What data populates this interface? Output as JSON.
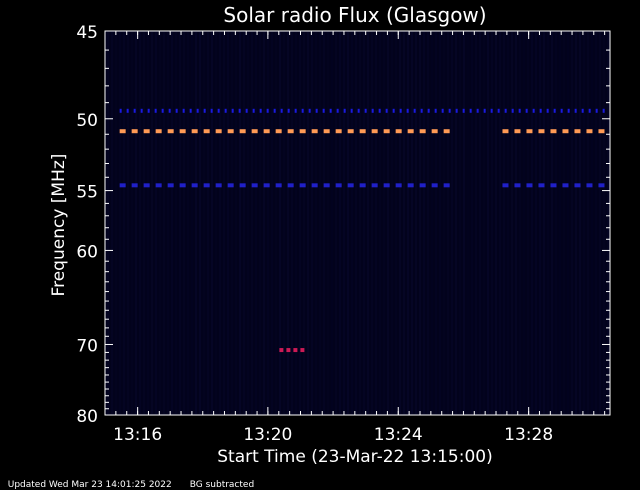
{
  "chart_data": {
    "type": "heatmap",
    "title": "Solar radio Flux (Glasgow)",
    "xlabel": "Start Time (23-Mar-22 13:15:00)",
    "ylabel": "Frequency [MHz]",
    "xlim_minutes": [
      13.25,
      13.5083
    ],
    "x_ticks": [
      {
        "label": "13:16",
        "value": 13.2667
      },
      {
        "label": "13:20",
        "value": 13.3333
      },
      {
        "label": "13:24",
        "value": 13.4
      },
      {
        "label": "13:28",
        "value": 13.4667
      }
    ],
    "y_scale": "reciprocal",
    "ylim": [
      45,
      80
    ],
    "y_ticks": [
      45,
      50,
      55,
      60,
      70,
      80
    ],
    "background_color": "#02021c",
    "series": [
      {
        "frequency": 49.5,
        "color": "#1a1ae0",
        "segments": [
          [
            13.2575,
            13.5083
          ]
        ],
        "style": "dotted"
      },
      {
        "frequency": 50.8,
        "color": "#ff9a55",
        "segments": [
          [
            13.2575,
            13.4283
          ],
          [
            13.4533,
            13.5083
          ]
        ],
        "style": "dashed"
      },
      {
        "frequency": 54.6,
        "color": "#2020c8",
        "segments": [
          [
            13.2575,
            13.4283
          ],
          [
            13.4533,
            13.5083
          ]
        ],
        "style": "dashed"
      },
      {
        "frequency": 70.7,
        "color": "#cc1a55",
        "segments": [
          [
            13.3392,
            13.3533
          ]
        ],
        "style": "dashed"
      }
    ]
  },
  "footer": {
    "updated": "Updated Wed Mar 23 14:01:25 2022",
    "note": "BG subtracted"
  }
}
